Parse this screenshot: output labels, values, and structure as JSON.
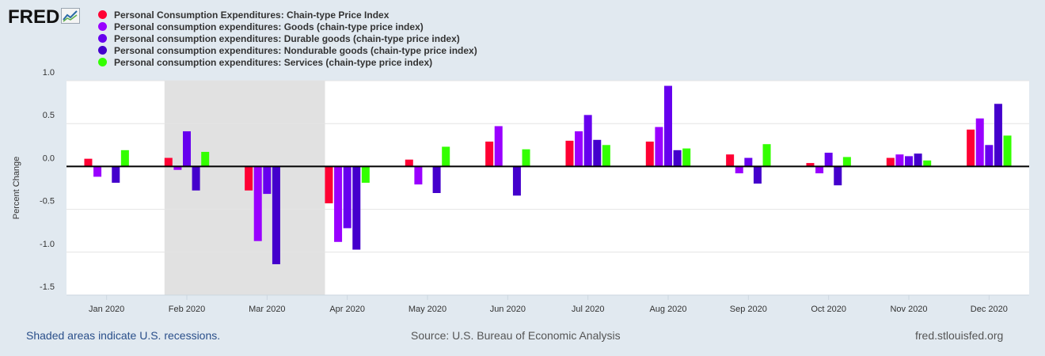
{
  "branding": {
    "logo_text": "FRED",
    "logo_icon": "chart-line-icon",
    "site": "fred.stlouisfed.org"
  },
  "footer": {
    "recession_note": "Shaded areas indicate U.S. recessions.",
    "source": "Source: U.S. Bureau of Economic Analysis"
  },
  "colors": {
    "background": "#e1e9f0",
    "plot_background": "#ffffff",
    "recession_shade": "#e1e1e1",
    "gridline": "#e4e4e4",
    "zero_line": "#000000"
  },
  "chart_data": {
    "type": "bar",
    "title": "",
    "xlabel": "",
    "ylabel": "Percent Change",
    "ylim": [
      -1.5,
      1.0
    ],
    "yticks": [
      1.0,
      0.5,
      0.0,
      -0.5,
      -1.0,
      -1.5
    ],
    "ytick_labels": [
      "1.0",
      "0.5",
      "0.0",
      "-0.5",
      "-1.0",
      "-1.5"
    ],
    "grid": true,
    "legend_position": "top-left",
    "recession_shading": {
      "from_month": "Feb 2020",
      "to_month": "Apr 2020"
    },
    "categories": [
      "Jan 2020",
      "Feb 2020",
      "Mar 2020",
      "Apr 2020",
      "May 2020",
      "Jun 2020",
      "Jul 2020",
      "Aug 2020",
      "Sep 2020",
      "Oct 2020",
      "Nov 2020",
      "Dec 2020"
    ],
    "series": [
      {
        "name": "Personal Consumption Expenditures: Chain-type Price Index",
        "color": "#ff0033",
        "values": [
          0.09,
          0.1,
          -0.28,
          -0.43,
          0.08,
          0.29,
          0.3,
          0.29,
          0.14,
          0.04,
          0.1,
          0.43
        ]
      },
      {
        "name": "Personal consumption expenditures: Goods (chain-type price index)",
        "color": "#9900ff",
        "values": [
          -0.12,
          -0.04,
          -0.87,
          -0.88,
          -0.21,
          0.47,
          0.41,
          0.46,
          -0.08,
          -0.08,
          0.14,
          0.56
        ]
      },
      {
        "name": "Personal consumption expenditures: Durable goods (chain-type price index)",
        "color": "#6600ee",
        "values": [
          0.0,
          0.41,
          -0.32,
          -0.72,
          0.0,
          0.0,
          0.6,
          0.94,
          0.1,
          0.16,
          0.12,
          0.25
        ]
      },
      {
        "name": "Personal consumption expenditures: Nondurable goods (chain-type price index)",
        "color": "#4400cc",
        "values": [
          -0.19,
          -0.28,
          -1.14,
          -0.97,
          -0.31,
          -0.34,
          0.31,
          0.19,
          -0.2,
          -0.22,
          0.15,
          0.73
        ]
      },
      {
        "name": "Personal consumption expenditures: Services (chain-type price index)",
        "color": "#33ff00",
        "values": [
          0.19,
          0.17,
          0.0,
          -0.19,
          0.23,
          0.2,
          0.25,
          0.21,
          0.26,
          0.11,
          0.07,
          0.36
        ]
      }
    ]
  }
}
